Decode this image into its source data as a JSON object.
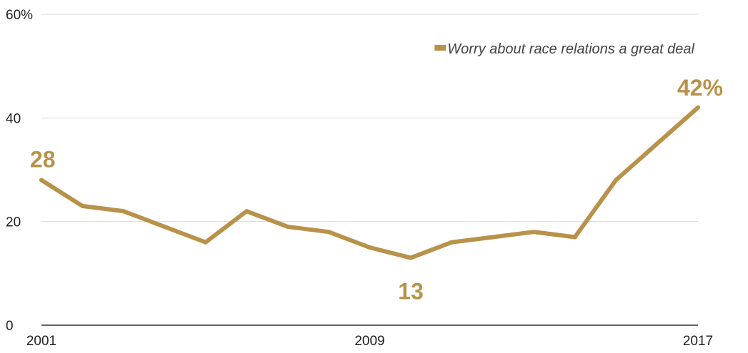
{
  "chart_data": {
    "type": "line",
    "x": [
      2001,
      2002,
      2003,
      2004,
      2005,
      2006,
      2007,
      2008,
      2009,
      2010,
      2011,
      2012,
      2013,
      2014,
      2015,
      2016,
      2017
    ],
    "series": [
      {
        "name": "Worry about race relations a great deal",
        "values": [
          28,
          23,
          22,
          19,
          16,
          22,
          19,
          18,
          15,
          13,
          16,
          17,
          18,
          17,
          28,
          35,
          42
        ],
        "color": "#b8924a"
      }
    ],
    "x_tick_labels": [
      "2001",
      "2009",
      "2017"
    ],
    "x_tick_values": [
      2001,
      2009,
      2017
    ],
    "y_tick_labels": [
      "0",
      "20",
      "40",
      "60%"
    ],
    "y_tick_values": [
      0,
      20,
      40,
      60
    ],
    "ylim": [
      0,
      60
    ],
    "xlim": [
      2001,
      2017
    ],
    "grid": "horizontal",
    "legend_position": "top-right",
    "annotations": [
      {
        "text": "28",
        "x": 2001,
        "y": 28
      },
      {
        "text": "13",
        "x": 2010,
        "y": 13
      },
      {
        "text": "42%",
        "x": 2017,
        "y": 42
      }
    ]
  }
}
